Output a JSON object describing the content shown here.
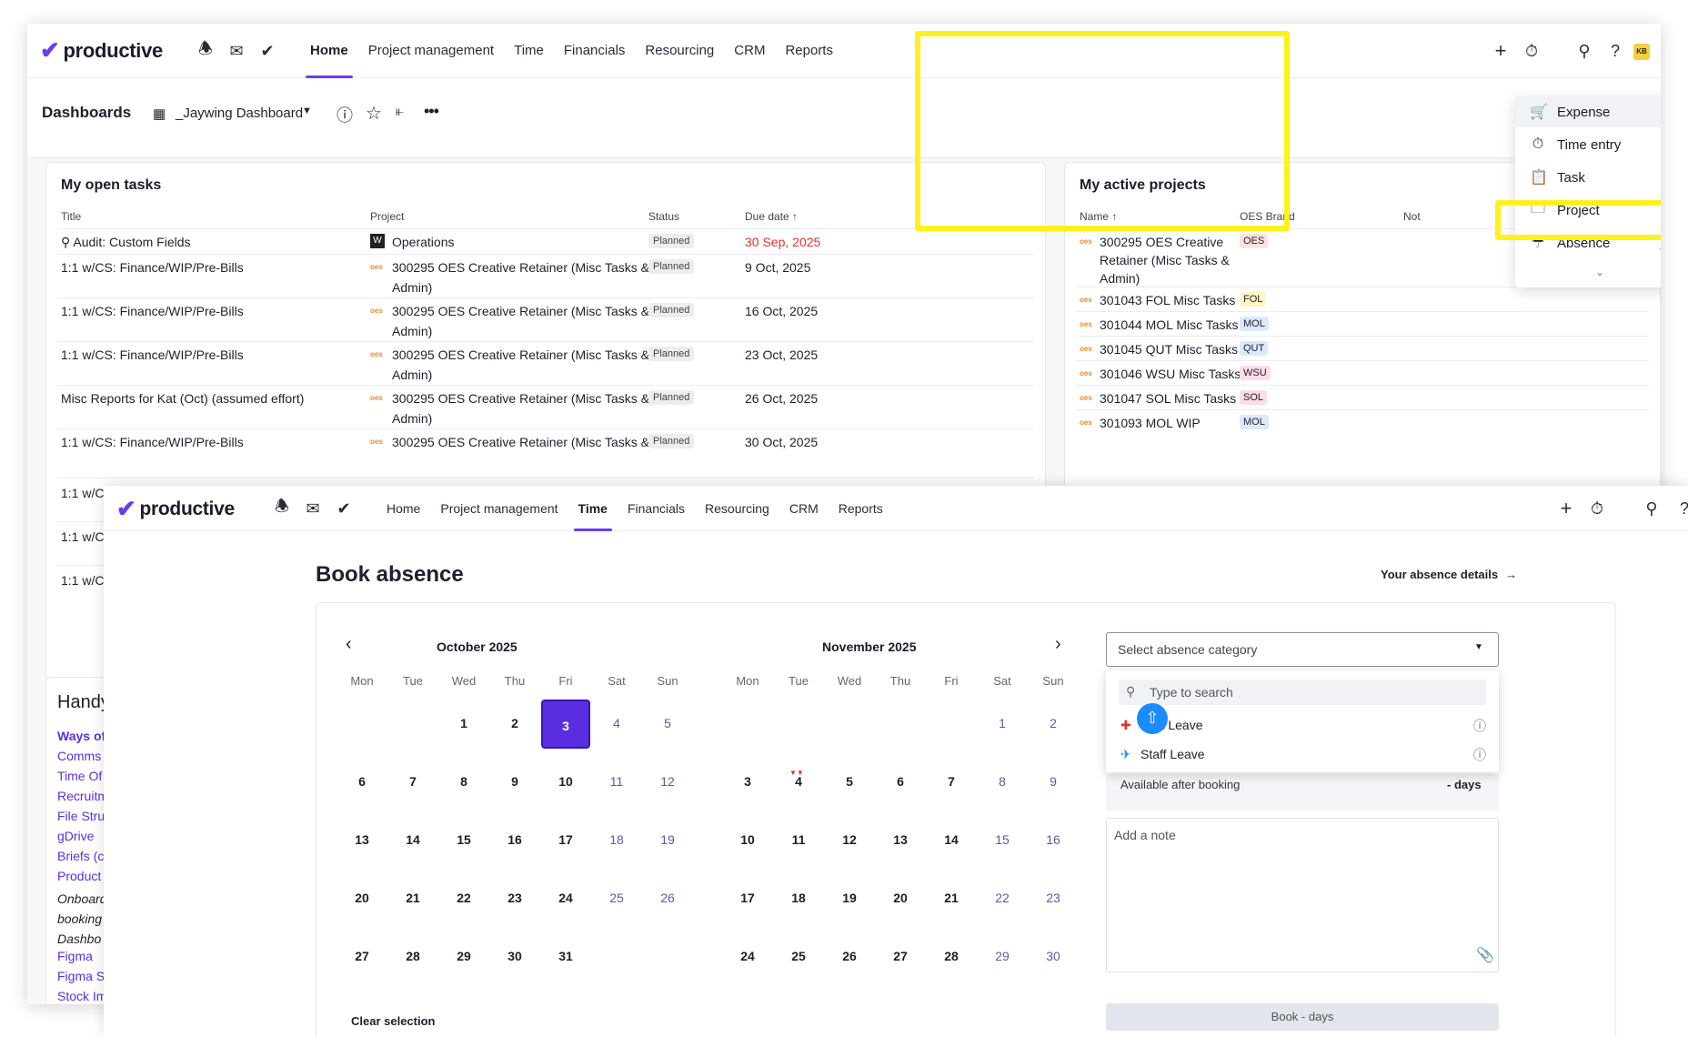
{
  "app": {
    "logo": "productive"
  },
  "back": {
    "nav": [
      "Home",
      "Project management",
      "Time",
      "Financials",
      "Resourcing",
      "CRM",
      "Reports"
    ],
    "active_nav": "Home",
    "avatar": "KB",
    "dashboards_label": "Dashboards",
    "dashboard_name": "_Jaywing Dashboard",
    "tasks": {
      "title": "My open tasks",
      "columns": [
        "Title",
        "Project",
        "Status",
        "Due date"
      ],
      "rows": [
        {
          "title": "Audit: Custom Fields",
          "project": "Operations",
          "project2": "",
          "status": "Planned",
          "due": "30 Sep, 2025"
        },
        {
          "title": "1:1 w/CS: Finance/WIP/Pre-Bills",
          "project": "300295 OES Creative Retainer (Misc Tasks &",
          "project2": "Admin)",
          "status": "Planned",
          "due": "9 Oct, 2025"
        },
        {
          "title": "1:1 w/CS: Finance/WIP/Pre-Bills",
          "project": "300295 OES Creative Retainer (Misc Tasks &",
          "project2": "Admin)",
          "status": "Planned",
          "due": "16 Oct, 2025"
        },
        {
          "title": "1:1 w/CS: Finance/WIP/Pre-Bills",
          "project": "300295 OES Creative Retainer (Misc Tasks &",
          "project2": "Admin)",
          "status": "Planned",
          "due": "23 Oct, 2025"
        },
        {
          "title": "Misc Reports for Kat (Oct) (assumed effort)",
          "project": "300295 OES Creative Retainer (Misc Tasks &",
          "project2": "Admin)",
          "status": "Planned",
          "due": "26 Oct, 2025"
        },
        {
          "title": "1:1 w/CS: Finance/WIP/Pre-Bills",
          "project": "300295 OES Creative Retainer (Misc Tasks &",
          "project2": "",
          "status": "Planned",
          "due": "30 Oct, 2025"
        }
      ],
      "partial_rows": [
        "1:1 w/C",
        "1:1 w/C",
        "1:1 w/C"
      ]
    },
    "projects": {
      "title": "My active projects",
      "columns": [
        "Name",
        "OES Brand",
        "Not"
      ],
      "rows": [
        {
          "name": "300295 OES Creative",
          "name2": "Retainer (Misc Tasks &",
          "name3": "Admin)",
          "brand": "OES",
          "color": "#fde3dc"
        },
        {
          "name": "301043 FOL Misc Tasks",
          "name2": "",
          "name3": "",
          "brand": "FOL",
          "color": "#fff6c4"
        },
        {
          "name": "301044 MOL Misc Tasks",
          "name2": "",
          "name3": "",
          "brand": "MOL",
          "color": "#dbe9fb"
        },
        {
          "name": "301045 QUT Misc Tasks",
          "name2": "",
          "name3": "",
          "brand": "QUT",
          "color": "#dbe9fb"
        },
        {
          "name": "301046 WSU Misc Tasks",
          "name2": "",
          "name3": "",
          "brand": "WSU",
          "color": "#fbdde6"
        },
        {
          "name": "301047 SOL Misc Tasks",
          "name2": "",
          "name3": "",
          "brand": "SOL",
          "color": "#fbdde6"
        },
        {
          "name": "301093 MOL WIP",
          "name2": "",
          "name3": "",
          "brand": "MOL",
          "color": "#dbe9fb"
        }
      ]
    },
    "handy": {
      "title": "Handy",
      "links": [
        {
          "text": "Ways of",
          "bold": true
        },
        {
          "text": "Comms"
        },
        {
          "text": "Time Of"
        },
        {
          "text": "Recruitm"
        },
        {
          "text": "File Stru"
        },
        {
          "text": "gDrive"
        },
        {
          "text": "Briefs (c"
        },
        {
          "text": "Product"
        }
      ],
      "italic": [
        "Onboard",
        "booking",
        "Dashbo"
      ],
      "links2": [
        "Figma",
        "Figma S",
        "Stock Im"
      ]
    },
    "add_menu": [
      {
        "label": "Expense",
        "icon": "cart-icon"
      },
      {
        "label": "Time entry",
        "icon": "stopwatch-icon"
      },
      {
        "label": "Task",
        "icon": "clipboard-icon"
      },
      {
        "label": "Project",
        "icon": "folder-icon"
      },
      {
        "label": "Absence",
        "icon": "umbrella-icon"
      }
    ]
  },
  "front": {
    "nav": [
      "Home",
      "Project management",
      "Time",
      "Financials",
      "Resourcing",
      "CRM",
      "Reports"
    ],
    "active_nav": "Time",
    "title": "Book absence",
    "details_link": "Your absence details",
    "dow": [
      "Mon",
      "Tue",
      "Wed",
      "Thu",
      "Fri",
      "Sat",
      "Sun"
    ],
    "oct": {
      "label": "October 2025",
      "weeks": [
        [
          "",
          "",
          "1",
          "2",
          "3",
          "4",
          "5"
        ],
        [
          "6",
          "7",
          "8",
          "9",
          "10",
          "11",
          "12"
        ],
        [
          "13",
          "14",
          "15",
          "16",
          "17",
          "18",
          "19"
        ],
        [
          "20",
          "21",
          "22",
          "23",
          "24",
          "25",
          "26"
        ],
        [
          "27",
          "28",
          "29",
          "30",
          "31",
          "",
          ""
        ]
      ],
      "selected": "3"
    },
    "nov": {
      "label": "November 2025",
      "weeks": [
        [
          "",
          "",
          "",
          "",
          "",
          "1",
          "2"
        ],
        [
          "3",
          "4",
          "5",
          "6",
          "7",
          "8",
          "9"
        ],
        [
          "10",
          "11",
          "12",
          "13",
          "14",
          "15",
          "16"
        ],
        [
          "17",
          "18",
          "19",
          "20",
          "21",
          "22",
          "23"
        ],
        [
          "24",
          "25",
          "26",
          "27",
          "28",
          "29",
          "30"
        ]
      ],
      "today": "4"
    },
    "clear_label": "Clear selection",
    "category_placeholder": "Select absence category",
    "search_placeholder": "Type to search",
    "options": [
      {
        "label": "Sick Leave",
        "icon": "medical-cross-icon"
      },
      {
        "label": "Staff Leave",
        "icon": "airplane-icon"
      }
    ],
    "available_label": "Available after booking",
    "available_value": "- days",
    "note_placeholder": "Add a note",
    "book_label": "Book - days"
  }
}
